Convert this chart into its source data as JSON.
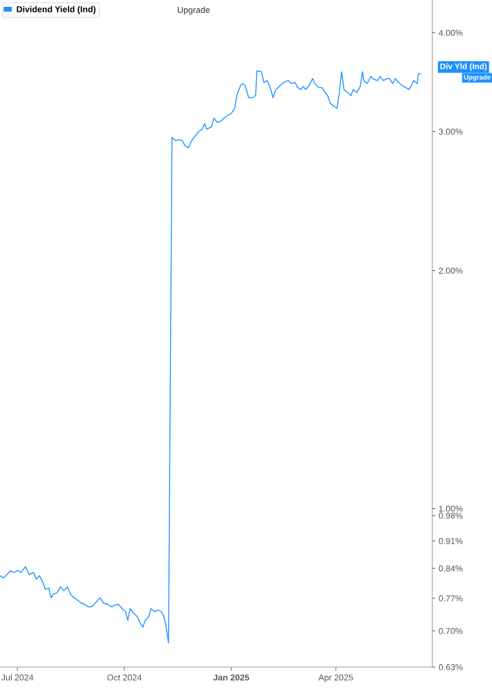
{
  "chart_data": {
    "type": "line",
    "log": "y",
    "grid": false,
    "legend": "top left",
    "marker": "none",
    "line_style": "solid",
    "annotations": [
      "Upgrade",
      "Div Yld (Ind)",
      "Upgrade"
    ],
    "xlim": [
      "2024-06-16",
      "2025-06-23"
    ],
    "xticks": [
      {
        "value": "2024-07-01",
        "label": "Jul 2024"
      },
      {
        "value": "2024-10-01",
        "label": "Oct 2024"
      },
      {
        "value": "2025-01-01",
        "label": "Jan 2025"
      },
      {
        "value": "2025-04-01",
        "label": "Apr 2025"
      }
    ],
    "ylim": [
      0.63,
      4.4
    ],
    "yticks": [
      {
        "value": 4.0,
        "label": "4.00%"
      },
      {
        "value": 3.0,
        "label": "3.00%"
      },
      {
        "value": 2.0,
        "label": "2.00%"
      },
      {
        "value": 1.0,
        "label": "1.00%"
      },
      {
        "value": 0.98,
        "label": "0.98%"
      },
      {
        "value": 0.91,
        "label": "0.91%"
      },
      {
        "value": 0.84,
        "label": "0.84%"
      },
      {
        "value": 0.77,
        "label": "0.77%"
      },
      {
        "value": 0.7,
        "label": "0.70%"
      },
      {
        "value": 0.63,
        "label": "0.63%"
      }
    ],
    "series": [
      {
        "name": "Dividend Yield (Ind)",
        "color": "#1e90ff",
        "x": [
          "2024-06-16",
          "2024-06-19",
          "2024-06-22",
          "2024-06-25",
          "2024-06-28",
          "2024-07-01",
          "2024-07-04",
          "2024-07-08",
          "2024-07-11",
          "2024-07-15",
          "2024-07-17",
          "2024-07-20",
          "2024-07-23",
          "2024-07-25",
          "2024-07-28",
          "2024-07-30",
          "2024-08-01",
          "2024-08-04",
          "2024-08-07",
          "2024-08-10",
          "2024-08-13",
          "2024-08-16",
          "2024-08-19",
          "2024-08-22",
          "2024-08-25",
          "2024-08-28",
          "2024-08-31",
          "2024-09-03",
          "2024-09-07",
          "2024-09-10",
          "2024-09-13",
          "2024-09-17",
          "2024-09-20",
          "2024-09-23",
          "2024-09-26",
          "2024-09-29",
          "2024-10-02",
          "2024-10-04",
          "2024-10-06",
          "2024-10-09",
          "2024-10-12",
          "2024-10-15",
          "2024-10-17",
          "2024-10-19",
          "2024-10-22",
          "2024-10-24",
          "2024-10-27",
          "2024-10-30",
          "2024-11-02",
          "2024-11-04",
          "2024-11-06",
          "2024-11-08",
          "2024-11-11",
          "2024-11-14",
          "2024-11-17",
          "2024-11-20",
          "2024-11-22",
          "2024-11-25",
          "2024-11-28",
          "2024-12-01",
          "2024-12-04",
          "2024-12-07",
          "2024-12-09",
          "2024-12-11",
          "2024-12-15",
          "2024-12-17",
          "2024-12-20",
          "2024-12-23",
          "2024-12-26",
          "2024-12-30",
          "2025-01-01",
          "2025-01-04",
          "2025-01-06",
          "2025-01-09",
          "2025-01-11",
          "2025-01-13",
          "2025-01-16",
          "2025-01-19",
          "2025-01-22",
          "2025-01-23",
          "2025-01-27",
          "2025-01-29",
          "2025-02-01",
          "2025-02-04",
          "2025-02-06",
          "2025-02-08",
          "2025-02-12",
          "2025-02-15",
          "2025-02-19",
          "2025-02-22",
          "2025-02-25",
          "2025-02-27",
          "2025-03-02",
          "2025-03-04",
          "2025-03-06",
          "2025-03-09",
          "2025-03-12",
          "2025-03-14",
          "2025-03-17",
          "2025-03-20",
          "2025-03-23",
          "2025-03-25",
          "2025-03-27",
          "2025-03-30",
          "2025-04-02",
          "2025-04-04",
          "2025-04-06",
          "2025-04-08",
          "2025-04-11",
          "2025-04-14",
          "2025-04-16",
          "2025-04-19",
          "2025-04-22",
          "2025-04-24",
          "2025-04-25",
          "2025-04-28",
          "2025-05-01",
          "2025-05-04",
          "2025-05-07",
          "2025-05-09",
          "2025-05-12",
          "2025-05-15",
          "2025-05-17",
          "2025-05-20",
          "2025-05-22",
          "2025-05-25",
          "2025-05-28",
          "2025-05-31",
          "2025-06-03",
          "2025-06-05",
          "2025-06-07",
          "2025-06-10",
          "2025-06-11",
          "2025-06-13"
        ],
        "values": [
          0.822,
          0.817,
          0.825,
          0.834,
          0.83,
          0.835,
          0.83,
          0.844,
          0.825,
          0.83,
          0.814,
          0.822,
          0.806,
          0.79,
          0.793,
          0.771,
          0.78,
          0.782,
          0.796,
          0.787,
          0.796,
          0.777,
          0.771,
          0.765,
          0.759,
          0.756,
          0.751,
          0.751,
          0.762,
          0.771,
          0.759,
          0.756,
          0.751,
          0.755,
          0.756,
          0.747,
          0.741,
          0.722,
          0.747,
          0.737,
          0.73,
          0.715,
          0.708,
          0.722,
          0.73,
          0.747,
          0.74,
          0.744,
          0.74,
          0.73,
          0.708,
          0.676,
          2.95,
          2.92,
          2.93,
          2.92,
          2.88,
          2.86,
          2.92,
          2.96,
          3.0,
          3.02,
          3.07,
          3.02,
          3.04,
          3.12,
          3.08,
          3.09,
          3.12,
          3.15,
          3.16,
          3.21,
          3.34,
          3.43,
          3.45,
          3.43,
          3.31,
          3.31,
          3.33,
          3.58,
          3.57,
          3.46,
          3.48,
          3.39,
          3.31,
          3.38,
          3.43,
          3.46,
          3.48,
          3.45,
          3.46,
          3.41,
          3.39,
          3.42,
          3.39,
          3.43,
          3.5,
          3.45,
          3.41,
          3.41,
          3.36,
          3.33,
          3.26,
          3.23,
          3.21,
          3.36,
          3.57,
          3.39,
          3.36,
          3.33,
          3.39,
          3.36,
          3.42,
          3.57,
          3.48,
          3.45,
          3.52,
          3.49,
          3.48,
          3.52,
          3.48,
          3.5,
          3.5,
          3.45,
          3.5,
          3.46,
          3.43,
          3.41,
          3.39,
          3.43,
          3.48,
          3.45,
          3.55,
          3.55
        ]
      }
    ]
  }
}
